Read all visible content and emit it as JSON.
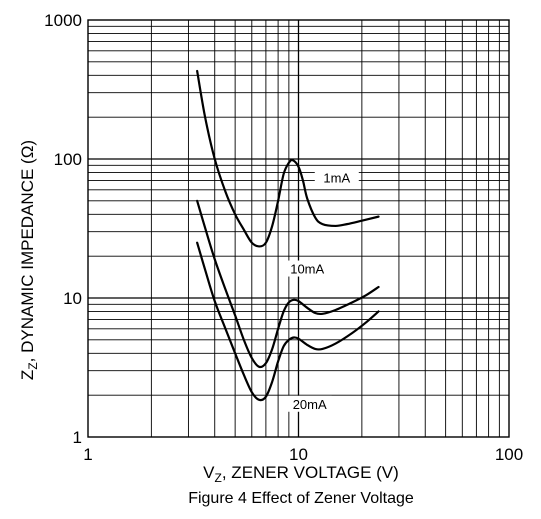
{
  "chart_data": {
    "type": "line",
    "caption": "Figure 4  Effect of Zener Voltage",
    "xlabel_main": "V",
    "xlabel_sub": "Z",
    "xlabel_rest": ", ZENER VOLTAGE (V)",
    "ylabel_main": "Z",
    "ylabel_sub": "Z",
    "ylabel_rest": ", DYNAMIC IMPEDANCE (Ω)",
    "x_scale": "log",
    "y_scale": "log",
    "xlim": [
      1,
      100
    ],
    "ylim": [
      1,
      1000
    ],
    "x_ticks": [
      {
        "v": 1,
        "label": "1"
      },
      {
        "v": 10,
        "label": "10"
      },
      {
        "v": 100,
        "label": "100"
      }
    ],
    "y_ticks": [
      {
        "v": 1,
        "label": "1"
      },
      {
        "v": 10,
        "label": "10"
      },
      {
        "v": 100,
        "label": "100"
      },
      {
        "v": 1000,
        "label": "1000"
      }
    ],
    "grid": true,
    "series": [
      {
        "name": "1mA",
        "label_at": {
          "x": 15.2,
          "y": 70
        },
        "points": [
          [
            3.3,
            430
          ],
          [
            3.6,
            200
          ],
          [
            4.0,
            100
          ],
          [
            4.5,
            58
          ],
          [
            5.0,
            40
          ],
          [
            5.5,
            31
          ],
          [
            6.0,
            25
          ],
          [
            6.5,
            23.5
          ],
          [
            7.0,
            25
          ],
          [
            7.5,
            33
          ],
          [
            8.0,
            50
          ],
          [
            8.5,
            78
          ],
          [
            9.0,
            94
          ],
          [
            9.4,
            98
          ],
          [
            10.0,
            88
          ],
          [
            10.5,
            70
          ],
          [
            11.0,
            52
          ],
          [
            12.0,
            38
          ],
          [
            13.0,
            34
          ],
          [
            15.0,
            33
          ],
          [
            17.0,
            34
          ],
          [
            20.0,
            36
          ],
          [
            24.0,
            38.5
          ]
        ]
      },
      {
        "name": "10mA",
        "label_at": {
          "x": 11.0,
          "y": 15.5
        },
        "points": [
          [
            3.3,
            50
          ],
          [
            3.6,
            32
          ],
          [
            4.0,
            19
          ],
          [
            4.5,
            11.5
          ],
          [
            5.0,
            7.5
          ],
          [
            5.5,
            5.0
          ],
          [
            6.0,
            3.7
          ],
          [
            6.5,
            3.2
          ],
          [
            7.0,
            3.4
          ],
          [
            7.5,
            4.3
          ],
          [
            8.0,
            6.0
          ],
          [
            8.5,
            8.0
          ],
          [
            9.0,
            9.3
          ],
          [
            9.5,
            9.7
          ],
          [
            10.0,
            9.5
          ],
          [
            11.0,
            8.5
          ],
          [
            12.0,
            7.8
          ],
          [
            13.0,
            7.7
          ],
          [
            15.0,
            8.2
          ],
          [
            18.0,
            9.3
          ],
          [
            21.0,
            10.5
          ],
          [
            24.0,
            12
          ]
        ]
      },
      {
        "name": "20mA",
        "label_at": {
          "x": 11.3,
          "y": 1.65
        },
        "points": [
          [
            3.3,
            25
          ],
          [
            3.6,
            16
          ],
          [
            4.0,
            9.5
          ],
          [
            4.5,
            6.0
          ],
          [
            5.0,
            4.0
          ],
          [
            5.5,
            2.8
          ],
          [
            6.0,
            2.1
          ],
          [
            6.5,
            1.85
          ],
          [
            7.0,
            1.95
          ],
          [
            7.5,
            2.5
          ],
          [
            8.0,
            3.5
          ],
          [
            8.5,
            4.5
          ],
          [
            9.0,
            5.0
          ],
          [
            9.5,
            5.2
          ],
          [
            10.0,
            5.1
          ],
          [
            11.0,
            4.6
          ],
          [
            12.0,
            4.3
          ],
          [
            13.0,
            4.3
          ],
          [
            15.0,
            4.7
          ],
          [
            18.0,
            5.6
          ],
          [
            21.0,
            6.7
          ],
          [
            24.0,
            8
          ]
        ]
      }
    ]
  }
}
